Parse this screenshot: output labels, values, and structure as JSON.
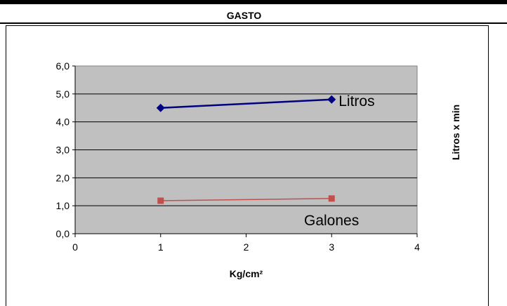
{
  "chart_data": {
    "type": "line",
    "title": "GASTO",
    "xlabel": "Kg/cm²",
    "ylabel": "Litros x min",
    "xlim": [
      0,
      4
    ],
    "ylim": [
      0,
      6
    ],
    "x_ticks": [
      "0",
      "1",
      "2",
      "3",
      "4"
    ],
    "y_ticks": [
      "0,0",
      "1,0",
      "2,0",
      "3,0",
      "4,0",
      "5,0",
      "6,0"
    ],
    "grid": true,
    "plot_background": "#c0c0c0",
    "series": [
      {
        "name": "Litros",
        "x": [
          1,
          3
        ],
        "y": [
          4.5,
          4.8
        ],
        "color": "#000080",
        "marker": "diamond"
      },
      {
        "name": "Galones",
        "x": [
          1,
          3
        ],
        "y": [
          1.18,
          1.26
        ],
        "color": "#c0504d",
        "marker": "square"
      }
    ]
  }
}
